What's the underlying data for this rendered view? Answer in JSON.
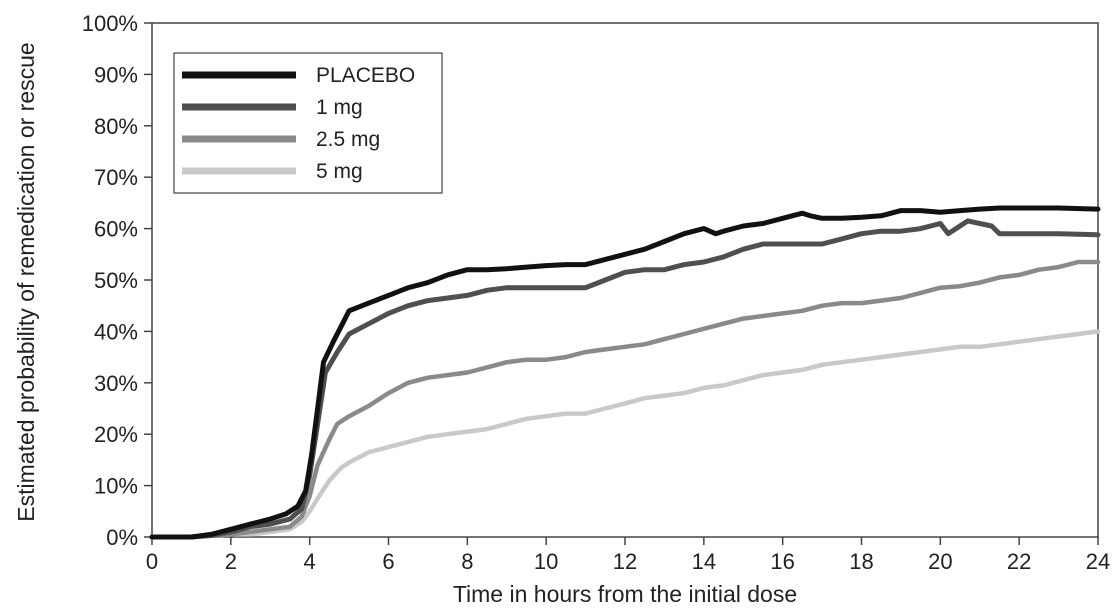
{
  "chart_data": {
    "type": "line",
    "title": "",
    "xlabel": "Time in hours from the initial dose",
    "ylabel": "Estimated probability of remedication or rescue",
    "xlim": [
      0,
      24
    ],
    "ylim": [
      0,
      100
    ],
    "x_ticks": [
      "0",
      "2",
      "4",
      "6",
      "8",
      "10",
      "12",
      "14",
      "16",
      "18",
      "20",
      "22",
      "24"
    ],
    "y_ticks": [
      "0%",
      "10%",
      "20%",
      "30%",
      "40%",
      "50%",
      "60%",
      "70%",
      "80%",
      "90%",
      "100%"
    ],
    "grid": false,
    "legend_position": "top-left",
    "series": [
      {
        "name": "PLACEBO",
        "color": "#111111",
        "points": [
          [
            0,
            0
          ],
          [
            1,
            0
          ],
          [
            1.5,
            0.5
          ],
          [
            2,
            1.5
          ],
          [
            2.5,
            2.5
          ],
          [
            3,
            3.5
          ],
          [
            3.4,
            4.5
          ],
          [
            3.7,
            6
          ],
          [
            3.9,
            9
          ],
          [
            4.05,
            16
          ],
          [
            4.2,
            25
          ],
          [
            4.35,
            34
          ],
          [
            4.6,
            38
          ],
          [
            4.8,
            41
          ],
          [
            5,
            44
          ],
          [
            5.5,
            45.5
          ],
          [
            6,
            47
          ],
          [
            6.5,
            48.5
          ],
          [
            7,
            49.5
          ],
          [
            7.5,
            51
          ],
          [
            8,
            52
          ],
          [
            8.5,
            52
          ],
          [
            9,
            52.2
          ],
          [
            9.5,
            52.5
          ],
          [
            10,
            52.8
          ],
          [
            10.5,
            53
          ],
          [
            11,
            53
          ],
          [
            11.5,
            54
          ],
          [
            12,
            55
          ],
          [
            12.5,
            56
          ],
          [
            13,
            57.5
          ],
          [
            13.5,
            59
          ],
          [
            14,
            60
          ],
          [
            14.3,
            59
          ],
          [
            14.5,
            59.5
          ],
          [
            15,
            60.5
          ],
          [
            15.5,
            61
          ],
          [
            16,
            62
          ],
          [
            16.5,
            63
          ],
          [
            16.7,
            62.5
          ],
          [
            17,
            62
          ],
          [
            17.5,
            62
          ],
          [
            18,
            62.2
          ],
          [
            18.5,
            62.5
          ],
          [
            19,
            63.5
          ],
          [
            19.5,
            63.5
          ],
          [
            20,
            63.2
          ],
          [
            20.5,
            63.5
          ],
          [
            21,
            63.8
          ],
          [
            21.5,
            64
          ],
          [
            22,
            64
          ],
          [
            22.5,
            64
          ],
          [
            23,
            64
          ],
          [
            24,
            63.8
          ]
        ]
      },
      {
        "name": "1 mg",
        "color": "#4f4f4f",
        "points": [
          [
            0,
            0
          ],
          [
            1,
            0
          ],
          [
            1.5,
            0.3
          ],
          [
            2,
            1
          ],
          [
            2.5,
            2
          ],
          [
            3,
            2.5
          ],
          [
            3.5,
            3.5
          ],
          [
            3.8,
            5.5
          ],
          [
            4,
            12
          ],
          [
            4.2,
            22
          ],
          [
            4.4,
            32
          ],
          [
            4.7,
            36
          ],
          [
            5,
            39.5
          ],
          [
            5.5,
            41.5
          ],
          [
            6,
            43.5
          ],
          [
            6.5,
            45
          ],
          [
            7,
            46
          ],
          [
            7.5,
            46.5
          ],
          [
            8,
            47
          ],
          [
            8.5,
            48
          ],
          [
            9,
            48.5
          ],
          [
            10,
            48.5
          ],
          [
            11,
            48.5
          ],
          [
            11.5,
            50
          ],
          [
            12,
            51.5
          ],
          [
            12.5,
            52
          ],
          [
            13,
            52
          ],
          [
            13.5,
            53
          ],
          [
            14,
            53.5
          ],
          [
            14.5,
            54.5
          ],
          [
            15,
            56
          ],
          [
            15.5,
            57
          ],
          [
            16,
            57
          ],
          [
            17,
            57
          ],
          [
            17.5,
            58
          ],
          [
            18,
            59
          ],
          [
            18.5,
            59.5
          ],
          [
            19,
            59.5
          ],
          [
            19.5,
            60
          ],
          [
            20,
            61
          ],
          [
            20.2,
            59
          ],
          [
            20.5,
            60.5
          ],
          [
            20.7,
            61.5
          ],
          [
            21,
            61
          ],
          [
            21.3,
            60.5
          ],
          [
            21.5,
            59
          ],
          [
            22,
            59
          ],
          [
            23,
            59
          ],
          [
            24,
            58.8
          ]
        ]
      },
      {
        "name": "2.5 mg",
        "color": "#8a8a8a",
        "points": [
          [
            0,
            0
          ],
          [
            1,
            0
          ],
          [
            2,
            0.5
          ],
          [
            2.5,
            1
          ],
          [
            3,
            1.5
          ],
          [
            3.5,
            2
          ],
          [
            3.8,
            4
          ],
          [
            4,
            8
          ],
          [
            4.2,
            14
          ],
          [
            4.5,
            19
          ],
          [
            4.7,
            22
          ],
          [
            5,
            23.5
          ],
          [
            5.5,
            25.5
          ],
          [
            6,
            28
          ],
          [
            6.5,
            30
          ],
          [
            7,
            31
          ],
          [
            7.5,
            31.5
          ],
          [
            8,
            32
          ],
          [
            8.5,
            33
          ],
          [
            9,
            34
          ],
          [
            9.5,
            34.5
          ],
          [
            10,
            34.5
          ],
          [
            10.5,
            35
          ],
          [
            11,
            36
          ],
          [
            11.5,
            36.5
          ],
          [
            12,
            37
          ],
          [
            12.5,
            37.5
          ],
          [
            13,
            38.5
          ],
          [
            13.5,
            39.5
          ],
          [
            14,
            40.5
          ],
          [
            14.5,
            41.5
          ],
          [
            15,
            42.5
          ],
          [
            15.5,
            43
          ],
          [
            16,
            43.5
          ],
          [
            16.5,
            44
          ],
          [
            17,
            45
          ],
          [
            17.5,
            45.5
          ],
          [
            18,
            45.5
          ],
          [
            18.5,
            46
          ],
          [
            19,
            46.5
          ],
          [
            19.5,
            47.5
          ],
          [
            20,
            48.5
          ],
          [
            20.5,
            48.8
          ],
          [
            21,
            49.5
          ],
          [
            21.5,
            50.5
          ],
          [
            22,
            51
          ],
          [
            22.5,
            52
          ],
          [
            23,
            52.5
          ],
          [
            23.5,
            53.5
          ],
          [
            24,
            53.5
          ]
        ]
      },
      {
        "name": "5 mg",
        "color": "#c9c9c9",
        "points": [
          [
            0,
            0
          ],
          [
            1,
            0
          ],
          [
            2,
            0.5
          ],
          [
            2.5,
            0.5
          ],
          [
            3,
            1
          ],
          [
            3.5,
            1.5
          ],
          [
            3.8,
            3
          ],
          [
            4,
            5
          ],
          [
            4.2,
            7.5
          ],
          [
            4.5,
            11
          ],
          [
            4.8,
            13.5
          ],
          [
            5,
            14.5
          ],
          [
            5.5,
            16.5
          ],
          [
            6,
            17.5
          ],
          [
            6.5,
            18.5
          ],
          [
            7,
            19.5
          ],
          [
            7.5,
            20
          ],
          [
            8,
            20.5
          ],
          [
            8.5,
            21
          ],
          [
            9,
            22
          ],
          [
            9.5,
            23
          ],
          [
            10,
            23.5
          ],
          [
            10.5,
            24
          ],
          [
            11,
            24
          ],
          [
            11.5,
            25
          ],
          [
            12,
            26
          ],
          [
            12.5,
            27
          ],
          [
            13,
            27.5
          ],
          [
            13.5,
            28
          ],
          [
            14,
            29
          ],
          [
            14.5,
            29.5
          ],
          [
            15,
            30.5
          ],
          [
            15.5,
            31.5
          ],
          [
            16,
            32
          ],
          [
            16.5,
            32.5
          ],
          [
            17,
            33.5
          ],
          [
            17.5,
            34
          ],
          [
            18,
            34.5
          ],
          [
            18.5,
            35
          ],
          [
            19,
            35.5
          ],
          [
            19.5,
            36
          ],
          [
            20,
            36.5
          ],
          [
            20.5,
            37
          ],
          [
            21,
            37
          ],
          [
            21.5,
            37.5
          ],
          [
            22,
            38
          ],
          [
            22.5,
            38.5
          ],
          [
            23,
            39
          ],
          [
            23.5,
            39.5
          ],
          [
            24,
            40
          ]
        ]
      }
    ]
  }
}
